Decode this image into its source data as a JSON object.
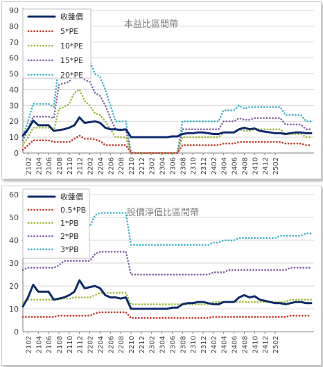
{
  "colors": {
    "price": "#0d2a6b",
    "s1": "#c0392b",
    "s2": "#9bbb3b",
    "s3": "#8064a2",
    "s4": "#3fb4c8",
    "grid": "#d9d9d9",
    "axis": "#808080",
    "title": "#7f7f7f"
  },
  "x_ticks": [
    "2102",
    "2104",
    "2106",
    "2108",
    "2110",
    "2112",
    "2202",
    "2204",
    "2206",
    "2208",
    "2210",
    "2212",
    "2302",
    "2304",
    "2306",
    "2308",
    "2310",
    "2312",
    "2402",
    "2404",
    "2406",
    "2408",
    "2410",
    "2412",
    "2502"
  ],
  "chart_data": [
    {
      "type": "line",
      "title": "本益比區間帶",
      "ylim": [
        0,
        90
      ],
      "y_ticks": [
        "0",
        "10",
        "20",
        "30",
        "40",
        "50",
        "60",
        "70",
        "80",
        "90"
      ],
      "grid": true,
      "legend": "top-left",
      "series": [
        {
          "name": "收盤價",
          "values": [
            11,
            15,
            20.5,
            17.5,
            17.5,
            17.5,
            14,
            14.5,
            15,
            16,
            17.5,
            22.5,
            19,
            19.5,
            20,
            19,
            16,
            15,
            15,
            14.5,
            15,
            10,
            10,
            10,
            10,
            10,
            10,
            10,
            10,
            10.5,
            10.5,
            12,
            12.5,
            12.5,
            13,
            13,
            12.5,
            12,
            12,
            13,
            13,
            13,
            15,
            16,
            15,
            15.5,
            14,
            13.5,
            13,
            12.5,
            12.5,
            12,
            12.5,
            13,
            13,
            12.5,
            12.5
          ]
        },
        {
          "name": "5*PE",
          "values": [
            2,
            5,
            8,
            8,
            8,
            8,
            7,
            7,
            7,
            7,
            9,
            11,
            9,
            9,
            8.5,
            7.5,
            5,
            5,
            5,
            5,
            5,
            0,
            0,
            0,
            0,
            0,
            0,
            0,
            0,
            0,
            0,
            5,
            5,
            5,
            5,
            5,
            5,
            5,
            5,
            6,
            6,
            6,
            7,
            7,
            7,
            7,
            7,
            7,
            7,
            7,
            7,
            6,
            6,
            6,
            6,
            5,
            5
          ]
        },
        {
          "name": "10*PE",
          "values": [
            5,
            10,
            16,
            16,
            16,
            16,
            14,
            28,
            29,
            31,
            38,
            40,
            33,
            30,
            25,
            24,
            20,
            15,
            10,
            10,
            10,
            0,
            0,
            0,
            0,
            0,
            0,
            0,
            0,
            0,
            0,
            10,
            10,
            10,
            10,
            10,
            10,
            10,
            10,
            13,
            13,
            13,
            15,
            14,
            14,
            15,
            15,
            15,
            15,
            15,
            15,
            12,
            12,
            12,
            12,
            10,
            10
          ]
        },
        {
          "name": "15*PE",
          "values": [
            8,
            15,
            23,
            23,
            23,
            23,
            22,
            43,
            44,
            45,
            52,
            55,
            46,
            45,
            38,
            36,
            30,
            22,
            15,
            15,
            15,
            0,
            0,
            0,
            0,
            0,
            0,
            0,
            0,
            0,
            0,
            15,
            15,
            15,
            15,
            15,
            15,
            15,
            15,
            20,
            20,
            20,
            22,
            21,
            21,
            22,
            22,
            22,
            22,
            22,
            22,
            18,
            18,
            18,
            18,
            15,
            15
          ]
        },
        {
          "name": "20*PE",
          "values": [
            10,
            20,
            31,
            31,
            31,
            31,
            29,
            56,
            58,
            60,
            65,
            64,
            60,
            58,
            50,
            48,
            40,
            30,
            20,
            20,
            20,
            0,
            0,
            0,
            0,
            0,
            0,
            0,
            0,
            0,
            0,
            20,
            20,
            20,
            20,
            20,
            20,
            20,
            20,
            27,
            27,
            27,
            30,
            28,
            29,
            29,
            29,
            29,
            29,
            29,
            29,
            24,
            24,
            24,
            24,
            20,
            20
          ]
        }
      ]
    },
    {
      "type": "line",
      "title": "股價淨值比區間帶",
      "ylim": [
        0,
        60
      ],
      "y_ticks": [
        "0",
        "10",
        "20",
        "30",
        "40",
        "50",
        "60"
      ],
      "grid": true,
      "legend": "top-left",
      "series": [
        {
          "name": "收盤價",
          "values": [
            11,
            15,
            20.5,
            17.5,
            17.5,
            17.5,
            14,
            14.5,
            15,
            16,
            17.5,
            22.5,
            19,
            19.5,
            20,
            19,
            16,
            15,
            15,
            14.5,
            15,
            10,
            10,
            10,
            10,
            10,
            10,
            10,
            10,
            10.5,
            10.5,
            12,
            12.5,
            12.5,
            13,
            13,
            12.5,
            12,
            12,
            13,
            13,
            13,
            15,
            16,
            15,
            15.5,
            14,
            13.5,
            13,
            12.5,
            12.5,
            12,
            12.5,
            13,
            13,
            12.5,
            12.5
          ]
        },
        {
          "name": "0.5*PB",
          "values": [
            6.5,
            6.5,
            6.5,
            6.5,
            6.5,
            6.5,
            6.5,
            7,
            7,
            7,
            7,
            7,
            7,
            7,
            8,
            8.5,
            8.5,
            8.5,
            8.5,
            8.5,
            8.5,
            6,
            6,
            6,
            6,
            6,
            6,
            6,
            6,
            6,
            6,
            6,
            6,
            6,
            6,
            6,
            6,
            6.5,
            6.5,
            6.5,
            6.5,
            6.5,
            6.5,
            6.5,
            6.5,
            6.5,
            6.5,
            6.5,
            6.5,
            6.5,
            6.5,
            6.5,
            7,
            7,
            7,
            7,
            7
          ]
        },
        {
          "name": "1*PB",
          "values": [
            13,
            14,
            14,
            14,
            14,
            14,
            14,
            14,
            14.5,
            14.5,
            15,
            15,
            15,
            15,
            16,
            17,
            17,
            17,
            17,
            17,
            17,
            12,
            12,
            12,
            12,
            12,
            12,
            12,
            12,
            12,
            12,
            12,
            12,
            12,
            12,
            12,
            12,
            13,
            13,
            13,
            13,
            13,
            13,
            13,
            13,
            13,
            13,
            13,
            13,
            13,
            13,
            13,
            14,
            14,
            14,
            14,
            14
          ]
        },
        {
          "name": "2*PB",
          "values": [
            27,
            28,
            28,
            28,
            28,
            28,
            28,
            29,
            31,
            31,
            31,
            31,
            31,
            31,
            34,
            35,
            35,
            35,
            35,
            35,
            35,
            25,
            25,
            25,
            25,
            25,
            25,
            25,
            25,
            25,
            25,
            25,
            25,
            25,
            25,
            25,
            25,
            26,
            26,
            26,
            27,
            27,
            27,
            27,
            27,
            27,
            27,
            27,
            27,
            27,
            27,
            27,
            28,
            28,
            28,
            28,
            28
          ]
        },
        {
          "name": "3*PB",
          "values": [
            40,
            41,
            41,
            41,
            41,
            41,
            41,
            44,
            46,
            46,
            46,
            46,
            46,
            46,
            51,
            52,
            52,
            52,
            52,
            52,
            52,
            38,
            38,
            38,
            38,
            38,
            38,
            38,
            38,
            38,
            38,
            38,
            38,
            38,
            38,
            38,
            38,
            39,
            39,
            40,
            40,
            40,
            41,
            41,
            41,
            41,
            41,
            41,
            41,
            41,
            42,
            42,
            42,
            42,
            42,
            43,
            43
          ]
        }
      ]
    }
  ]
}
